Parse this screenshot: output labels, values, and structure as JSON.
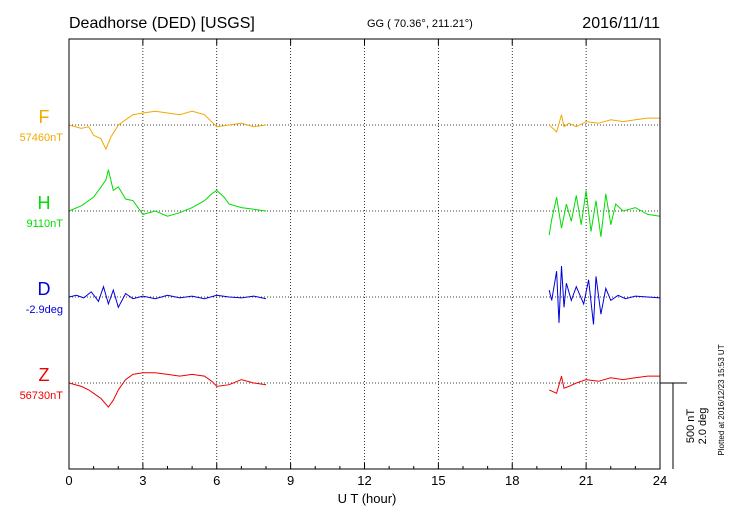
{
  "header": {
    "title": "Deadhorse (DED)  [USGS]",
    "coords": "GG ( 70.36°, 211.21°)",
    "date": "2016/11/11"
  },
  "side_note": "Plotted at 2016/12/23 15:53 UT",
  "scale_bar": {
    "nt": "500 nT",
    "deg": "2.0 deg"
  },
  "chart_data": {
    "type": "line",
    "xlabel": "U T (hour)",
    "xlim": [
      0,
      24
    ],
    "xticks": [
      "0",
      "3",
      "6",
      "9",
      "12",
      "15",
      "18",
      "21",
      "24"
    ],
    "grid": true,
    "data_gap_hours": [
      8.0,
      19.5
    ],
    "colors": {
      "F": "#f2a900",
      "H": "#00dd00",
      "D": "#0000dd",
      "Z": "#ee0000"
    },
    "series": [
      {
        "name": "F",
        "baseline": "57460nT",
        "segments": [
          {
            "x": [
              0,
              0.5,
              0.8,
              1.0,
              1.3,
              1.5,
              1.7,
              2.0,
              2.3,
              2.6,
              3.0,
              3.5,
              4.0,
              4.5,
              5.0,
              5.5,
              6.0,
              6.5,
              7.0,
              7.5,
              8.0
            ],
            "y": [
              0,
              -20,
              -10,
              -60,
              -80,
              -140,
              -70,
              0,
              30,
              60,
              70,
              80,
              70,
              60,
              80,
              60,
              -10,
              0,
              10,
              -10,
              0
            ]
          },
          {
            "x": [
              19.5,
              19.8,
              20.0,
              20.1,
              20.3,
              20.6,
              21.0,
              21.5,
              22.0,
              22.5,
              23.0,
              23.5,
              24.0
            ],
            "y": [
              0,
              -40,
              60,
              -10,
              10,
              -10,
              20,
              10,
              30,
              20,
              30,
              40,
              40
            ]
          }
        ]
      },
      {
        "name": "H",
        "baseline": "9110nT",
        "segments": [
          {
            "x": [
              0,
              0.5,
              1.0,
              1.3,
              1.5,
              1.6,
              1.8,
              2.0,
              2.3,
              2.6,
              3.0,
              3.5,
              4.0,
              4.5,
              5.0,
              5.5,
              5.8,
              6.0,
              6.3,
              6.5,
              7.0,
              7.5,
              8.0
            ],
            "y": [
              0,
              30,
              80,
              140,
              180,
              240,
              120,
              140,
              70,
              60,
              -20,
              0,
              -30,
              -10,
              20,
              60,
              100,
              120,
              80,
              40,
              20,
              10,
              0
            ]
          },
          {
            "x": [
              19.5,
              19.6,
              19.8,
              20.0,
              20.2,
              20.4,
              20.6,
              20.8,
              21.0,
              21.2,
              21.4,
              21.6,
              21.8,
              22.0,
              22.2,
              22.5,
              23.0,
              23.5,
              24.0
            ],
            "y": [
              -140,
              -50,
              80,
              -100,
              40,
              -60,
              90,
              -80,
              120,
              -120,
              60,
              -150,
              100,
              -80,
              40,
              0,
              20,
              -20,
              -30
            ]
          }
        ]
      },
      {
        "name": "D",
        "baseline": "-2.9deg",
        "segments": [
          {
            "x": [
              0,
              0.3,
              0.6,
              0.9,
              1.2,
              1.4,
              1.6,
              1.8,
              2.0,
              2.3,
              2.6,
              3.0,
              3.5,
              4.0,
              4.5,
              5.0,
              5.5,
              6.0,
              6.5,
              7.0,
              7.5,
              8.0
            ],
            "y": [
              0,
              10,
              -5,
              30,
              -25,
              60,
              -40,
              40,
              -60,
              20,
              -10,
              5,
              -10,
              10,
              -5,
              5,
              -10,
              10,
              0,
              -5,
              5,
              -10
            ]
          },
          {
            "x": [
              19.5,
              19.6,
              19.8,
              19.9,
              20.0,
              20.1,
              20.2,
              20.4,
              20.6,
              20.9,
              21.1,
              21.3,
              21.4,
              21.6,
              21.8,
              22.0,
              22.3,
              22.6,
              23.0,
              23.5,
              24.0
            ],
            "y": [
              40,
              -20,
              150,
              -150,
              180,
              -60,
              80,
              -20,
              60,
              -40,
              100,
              -160,
              120,
              -100,
              50,
              -20,
              10,
              -10,
              5,
              0,
              -5
            ]
          }
        ]
      },
      {
        "name": "Z",
        "baseline": "56730nT",
        "segments": [
          {
            "x": [
              0,
              0.5,
              0.8,
              1.0,
              1.3,
              1.6,
              1.8,
              2.0,
              2.3,
              2.6,
              3.0,
              3.5,
              4.0,
              4.5,
              5.0,
              5.5,
              5.8,
              6.0,
              6.5,
              7.0,
              7.5,
              8.0
            ],
            "y": [
              0,
              -20,
              -40,
              -60,
              -90,
              -140,
              -100,
              -40,
              20,
              50,
              60,
              60,
              50,
              40,
              50,
              40,
              10,
              -20,
              -10,
              20,
              0,
              -10
            ]
          },
          {
            "x": [
              19.5,
              19.8,
              20.0,
              20.1,
              20.3,
              20.6,
              21.0,
              21.5,
              22.0,
              22.5,
              23.0,
              23.5,
              24.0
            ],
            "y": [
              -40,
              -60,
              40,
              -30,
              -20,
              0,
              20,
              10,
              30,
              20,
              30,
              40,
              40
            ]
          }
        ]
      }
    ]
  }
}
